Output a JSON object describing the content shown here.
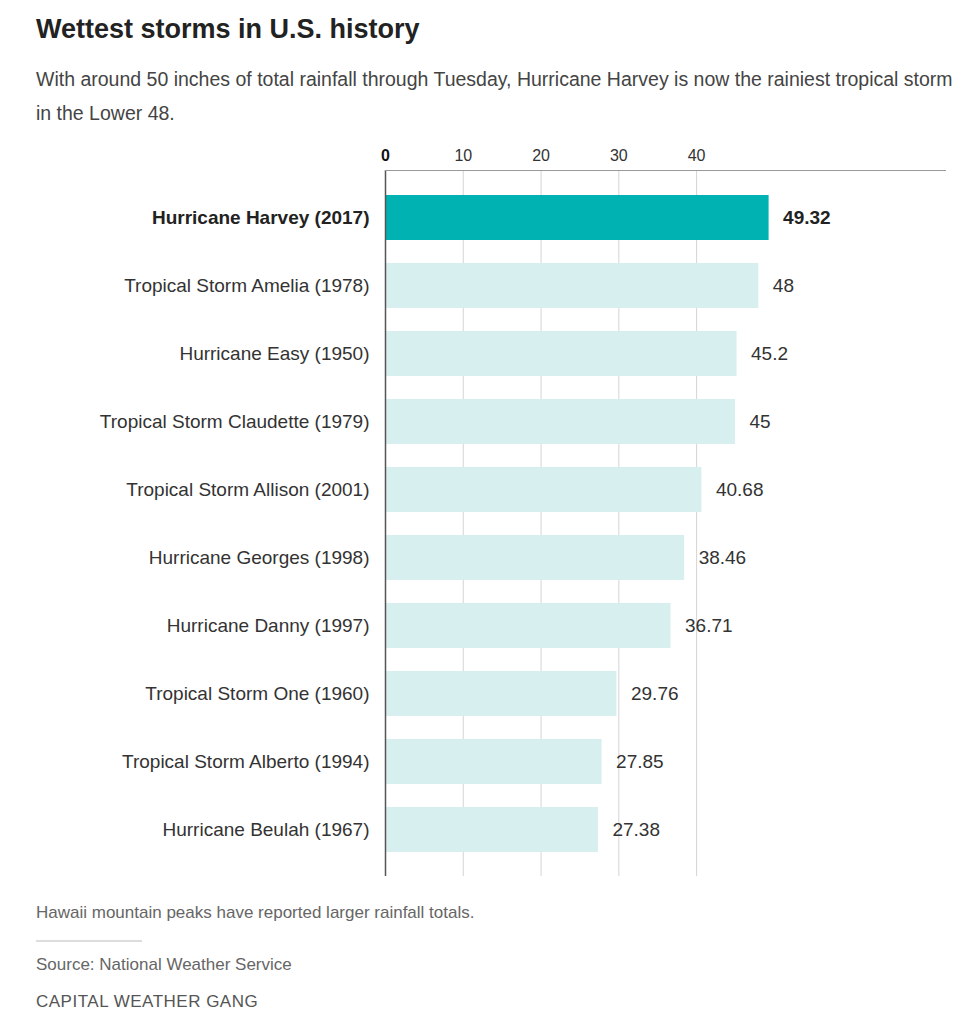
{
  "chart_data": {
    "type": "bar",
    "orientation": "horizontal",
    "title": "Wettest storms in U.S. history",
    "subtitle": "With around 50 inches of total rainfall through Tuesday, Hurricane Harvey is now the rainiest tropical storm in the Lower 48.",
    "categories": [
      "Hurricane Harvey (2017)",
      "Tropical Storm Amelia (1978)",
      "Hurricane Easy (1950)",
      "Tropical Storm Claudette (1979)",
      "Tropical Storm Allison (2001)",
      "Hurricane Georges (1998)",
      "Hurricane Danny (1997)",
      "Tropical Storm One (1960)",
      "Tropical Storm Alberto (1994)",
      "Hurricane Beulah (1967)"
    ],
    "values": [
      49.32,
      48,
      45.2,
      45,
      40.68,
      38.46,
      36.71,
      29.76,
      27.85,
      27.38
    ],
    "colors": [
      "#00b2b2",
      "#d8eff0",
      "#d8eff0",
      "#d8eff0",
      "#d8eff0",
      "#d8eff0",
      "#d8eff0",
      "#d8eff0",
      "#d8eff0",
      "#d8eff0"
    ],
    "xlim": [
      0,
      72
    ],
    "xticks": [
      0,
      10,
      20,
      30,
      40
    ],
    "grid": true,
    "data_labels": true,
    "note": "Hawaii mountain peaks have reported larger rainfall totals.",
    "source": "Source: National Weather Service",
    "credit": "CAPITAL WEATHER GANG"
  }
}
